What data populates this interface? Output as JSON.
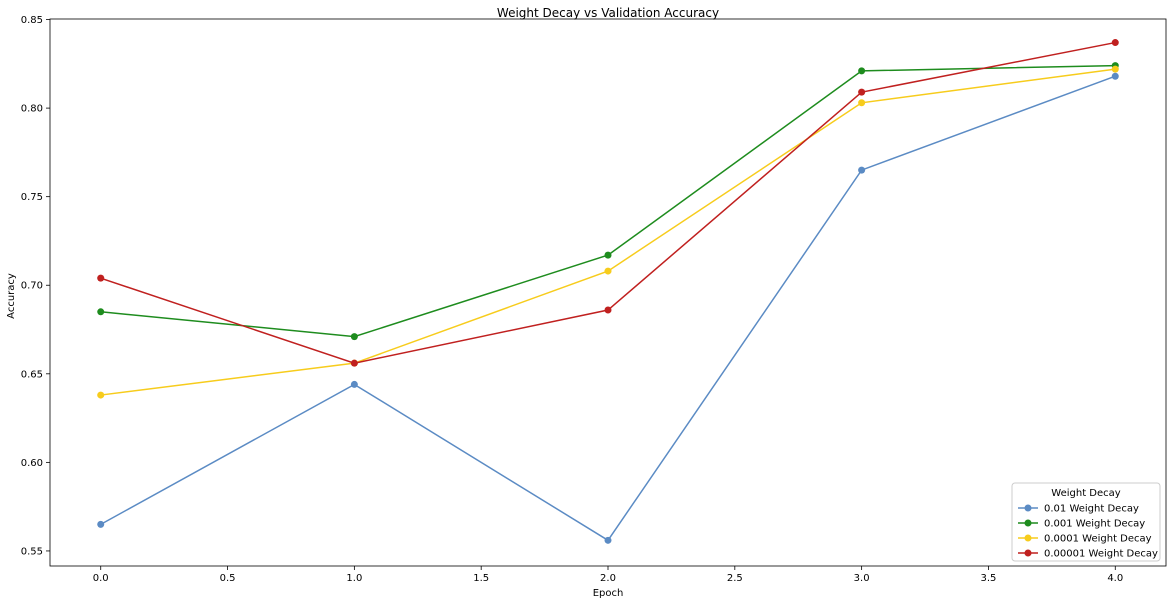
{
  "chart_data": {
    "type": "line",
    "title": "Weight Decay vs Validation Accuracy",
    "xlabel": "Epoch",
    "ylabel": "Accuracy",
    "x": [
      0,
      1,
      2,
      3,
      4
    ],
    "xlim": [
      -0.2,
      4.2
    ],
    "ylim": [
      0.5415,
      0.8503
    ],
    "xticks": [
      "0.0",
      "0.5",
      "1.0",
      "1.5",
      "2.0",
      "2.5",
      "3.0",
      "3.5",
      "4.0"
    ],
    "xtick_values": [
      0,
      0.5,
      1,
      1.5,
      2,
      2.5,
      3,
      3.5,
      4
    ],
    "yticks": [
      "0.55",
      "0.60",
      "0.65",
      "0.70",
      "0.75",
      "0.80",
      "0.85"
    ],
    "ytick_values": [
      0.55,
      0.6,
      0.65,
      0.7,
      0.75,
      0.8,
      0.85
    ],
    "grid": false,
    "legend": {
      "title": "Weight Decay",
      "placement": "bottom-right"
    },
    "series": [
      {
        "name": "0.01 Weight Decay",
        "color": "#5b8bc4",
        "values": [
          0.565,
          0.644,
          0.556,
          0.765,
          0.818
        ]
      },
      {
        "name": "0.001 Weight Decay",
        "color": "#1e8c1e",
        "values": [
          0.685,
          0.671,
          0.717,
          0.821,
          0.824
        ]
      },
      {
        "name": "0.0001 Weight Decay",
        "color": "#f7cc1c",
        "values": [
          0.638,
          0.656,
          0.708,
          0.803,
          0.822
        ]
      },
      {
        "name": "0.00001 Weight Decay",
        "color": "#c0201f",
        "values": [
          0.704,
          0.656,
          0.686,
          0.809,
          0.837
        ]
      }
    ]
  }
}
